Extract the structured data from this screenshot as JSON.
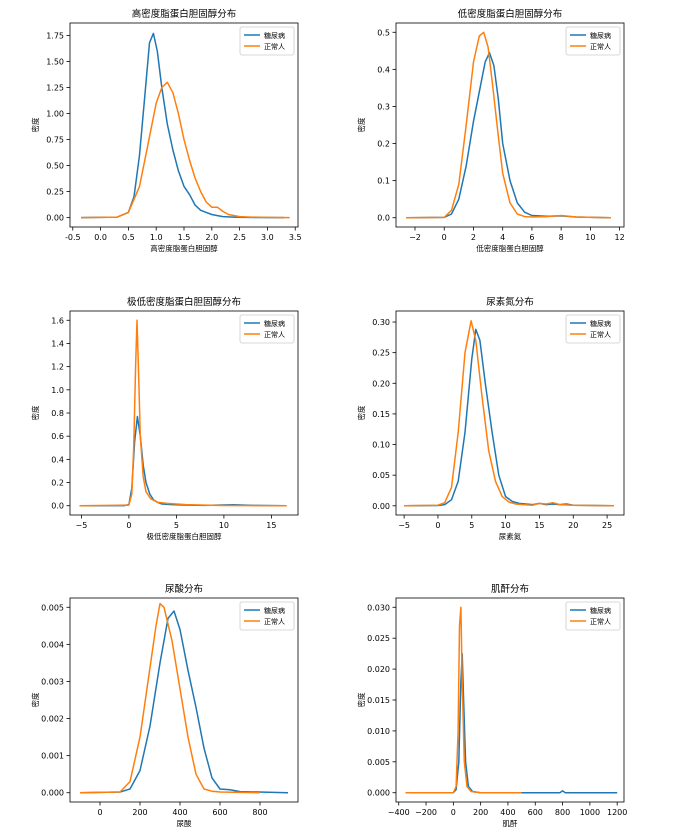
{
  "chart_data": [
    {
      "type": "line",
      "title": "高密度脂蛋白胆固醇分布",
      "xlabel": "高密度脂蛋白胆固醇",
      "ylabel": "密度",
      "xlim": [
        -0.55,
        3.55
      ],
      "ylim": [
        -0.09,
        1.87
      ],
      "xticks": [
        -0.5,
        0.0,
        0.5,
        1.0,
        1.5,
        2.0,
        2.5,
        3.0,
        3.5
      ],
      "xtick_labels": [
        "-0.5",
        "0.0",
        "0.5",
        "1.0",
        "1.5",
        "2.0",
        "2.5",
        "3.0",
        "3.5"
      ],
      "yticks": [
        0,
        0.25,
        0.5,
        0.75,
        1.0,
        1.25,
        1.5,
        1.75
      ],
      "ytick_labels": [
        "0.00",
        "0.25",
        "0.50",
        "0.75",
        "1.00",
        "1.25",
        "1.50",
        "1.75"
      ],
      "legend": "top-right",
      "series": [
        {
          "name": "糖尿病",
          "color": "#1f77b4",
          "x": [
            -0.35,
            0.3,
            0.5,
            0.6,
            0.7,
            0.8,
            0.88,
            0.95,
            1.02,
            1.1,
            1.2,
            1.3,
            1.4,
            1.5,
            1.6,
            1.7,
            1.8,
            1.9,
            2.0,
            2.1,
            2.2,
            2.4,
            2.6,
            3.3
          ],
          "y": [
            0,
            0.005,
            0.05,
            0.2,
            0.6,
            1.2,
            1.68,
            1.77,
            1.6,
            1.25,
            0.9,
            0.65,
            0.45,
            0.3,
            0.22,
            0.12,
            0.07,
            0.05,
            0.03,
            0.02,
            0.01,
            0.005,
            0.002,
            0
          ]
        },
        {
          "name": "正常人",
          "color": "#ff7f0e",
          "x": [
            -0.35,
            0.3,
            0.5,
            0.7,
            0.85,
            1.0,
            1.1,
            1.2,
            1.3,
            1.4,
            1.5,
            1.6,
            1.7,
            1.8,
            1.9,
            2.0,
            2.1,
            2.2,
            2.3,
            2.5,
            2.7,
            3.0,
            3.4
          ],
          "y": [
            0,
            0.005,
            0.05,
            0.3,
            0.7,
            1.1,
            1.25,
            1.3,
            1.2,
            1.0,
            0.75,
            0.55,
            0.38,
            0.25,
            0.15,
            0.1,
            0.1,
            0.06,
            0.03,
            0.01,
            0.005,
            0.002,
            0
          ]
        }
      ]
    },
    {
      "type": "line",
      "title": "低密度脂蛋白胆固醇分布",
      "xlabel": "低密度脂蛋白胆固醇",
      "ylabel": "密度",
      "xlim": [
        -3.3,
        12.3
      ],
      "ylim": [
        -0.025,
        0.525
      ],
      "xticks": [
        -2,
        0,
        2,
        4,
        6,
        8,
        10,
        12
      ],
      "xtick_labels": [
        "−2",
        "0",
        "2",
        "4",
        "6",
        "8",
        "10",
        "12"
      ],
      "yticks": [
        0,
        0.1,
        0.2,
        0.3,
        0.4,
        0.5
      ],
      "ytick_labels": [
        "0.0",
        "0.1",
        "0.2",
        "0.3",
        "0.4",
        "0.5"
      ],
      "legend": "top-right",
      "series": [
        {
          "name": "糖尿病",
          "color": "#1f77b4",
          "x": [
            -2.6,
            0,
            0.5,
            1.0,
            1.5,
            2.0,
            2.5,
            2.8,
            3.1,
            3.4,
            3.7,
            4.0,
            4.5,
            5.0,
            5.5,
            6.0,
            7.0,
            8.0,
            9.0,
            11.4
          ],
          "y": [
            0,
            0.001,
            0.01,
            0.05,
            0.14,
            0.26,
            0.36,
            0.42,
            0.445,
            0.41,
            0.32,
            0.2,
            0.1,
            0.04,
            0.015,
            0.006,
            0.004,
            0.005,
            0.002,
            0
          ]
        },
        {
          "name": "正常人",
          "color": "#ff7f0e",
          "x": [
            -2.6,
            0,
            0.5,
            1.0,
            1.5,
            2.0,
            2.4,
            2.7,
            3.0,
            3.3,
            3.7,
            4.0,
            4.5,
            5.0,
            5.5,
            6.0,
            7.0,
            8.0,
            9.0,
            11.4
          ],
          "y": [
            0,
            0.001,
            0.02,
            0.09,
            0.25,
            0.42,
            0.49,
            0.5,
            0.46,
            0.36,
            0.22,
            0.12,
            0.04,
            0.01,
            0.003,
            0.002,
            0.003,
            0.006,
            0.002,
            0
          ]
        }
      ]
    },
    {
      "type": "line",
      "title": "极低密度脂蛋白胆固醇分布",
      "xlabel": "极低密度脂蛋白胆固醇",
      "ylabel": "密度",
      "xlim": [
        -6.2,
        17.8
      ],
      "ylim": [
        -0.08,
        1.68
      ],
      "xticks": [
        -5,
        0,
        5,
        10,
        15
      ],
      "xtick_labels": [
        "−5",
        "0",
        "5",
        "10",
        "15"
      ],
      "yticks": [
        0,
        0.2,
        0.4,
        0.6,
        0.8,
        1.0,
        1.2,
        1.4,
        1.6
      ],
      "ytick_labels": [
        "0.0",
        "0.2",
        "0.4",
        "0.6",
        "0.8",
        "1.0",
        "1.2",
        "1.4",
        "1.6"
      ],
      "legend": "top-right",
      "series": [
        {
          "name": "糖尿病",
          "color": "#1f77b4",
          "x": [
            -5.2,
            -0.5,
            0.0,
            0.3,
            0.6,
            0.9,
            1.2,
            1.5,
            1.8,
            2.2,
            2.6,
            3.0,
            3.5,
            4.5,
            6,
            8,
            11,
            13,
            16.6
          ],
          "y": [
            0,
            0.001,
            0.01,
            0.15,
            0.55,
            0.77,
            0.6,
            0.35,
            0.2,
            0.1,
            0.05,
            0.03,
            0.015,
            0.01,
            0.005,
            0.003,
            0.008,
            0.003,
            0
          ]
        },
        {
          "name": "正常人",
          "color": "#ff7f0e",
          "x": [
            -5.2,
            0.0,
            0.3,
            0.5,
            0.7,
            0.85,
            1.0,
            1.2,
            1.5,
            1.8,
            2.3,
            3.0,
            4.0,
            5,
            6,
            8,
            10,
            16.6
          ],
          "y": [
            0,
            0.005,
            0.1,
            0.5,
            1.2,
            1.6,
            1.2,
            0.6,
            0.25,
            0.12,
            0.06,
            0.03,
            0.02,
            0.015,
            0.01,
            0.005,
            0.002,
            0
          ]
        }
      ]
    },
    {
      "type": "line",
      "title": "尿素氮分布",
      "xlabel": "尿素氮",
      "ylabel": "密度",
      "xlim": [
        -6.2,
        27.5
      ],
      "ylim": [
        -0.015,
        0.318
      ],
      "xticks": [
        -5,
        0,
        5,
        10,
        15,
        20,
        25
      ],
      "xtick_labels": [
        "−5",
        "0",
        "5",
        "10",
        "15",
        "20",
        "25"
      ],
      "yticks": [
        0,
        0.05,
        0.1,
        0.15,
        0.2,
        0.25,
        0.3
      ],
      "ytick_labels": [
        "0.00",
        "0.05",
        "0.10",
        "0.15",
        "0.20",
        "0.25",
        "0.30"
      ],
      "legend": "top-right",
      "series": [
        {
          "name": "糖尿病",
          "color": "#1f77b4",
          "x": [
            -5,
            0,
            1,
            2,
            3,
            4,
            5,
            5.6,
            6.2,
            7,
            8,
            9,
            10,
            11,
            12,
            13,
            14,
            15,
            16,
            17,
            18,
            19,
            20,
            26
          ],
          "y": [
            0,
            0.0005,
            0.002,
            0.01,
            0.04,
            0.12,
            0.24,
            0.288,
            0.27,
            0.2,
            0.12,
            0.05,
            0.015,
            0.007,
            0.004,
            0.003,
            0.002,
            0.004,
            0.002,
            0.003,
            0.002,
            0.003,
            0.001,
            0
          ]
        },
        {
          "name": "正常人",
          "color": "#ff7f0e",
          "x": [
            -5,
            0,
            1,
            2,
            3,
            4,
            4.9,
            5.6,
            6.5,
            7.5,
            8.5,
            9.5,
            10.5,
            11.5,
            12.5,
            14,
            15,
            16,
            17,
            18,
            20,
            26
          ],
          "y": [
            0,
            0.001,
            0.005,
            0.03,
            0.12,
            0.25,
            0.302,
            0.27,
            0.18,
            0.09,
            0.04,
            0.015,
            0.006,
            0.003,
            0.002,
            0.001,
            0.004,
            0.003,
            0.005,
            0.002,
            0.001,
            0
          ]
        }
      ]
    },
    {
      "type": "line",
      "title": "尿酸分布",
      "xlabel": "尿酸",
      "ylabel": "密度",
      "xlim": [
        -150,
        990
      ],
      "ylim": [
        -0.00025,
        0.00525
      ],
      "xticks": [
        0,
        200,
        400,
        600,
        800
      ],
      "xtick_labels": [
        "0",
        "200",
        "400",
        "600",
        "800"
      ],
      "yticks": [
        0,
        0.001,
        0.002,
        0.003,
        0.004,
        0.005
      ],
      "ytick_labels": [
        "0.000",
        "0.001",
        "0.002",
        "0.003",
        "0.004",
        "0.005"
      ],
      "legend": "top-right",
      "series": [
        {
          "name": "糖尿病",
          "color": "#1f77b4",
          "x": [
            -100,
            100,
            150,
            200,
            250,
            300,
            340,
            370,
            400,
            440,
            480,
            520,
            560,
            600,
            650,
            700,
            940
          ],
          "y": [
            0,
            2e-05,
            0.0001,
            0.0006,
            0.0018,
            0.0035,
            0.0047,
            0.0049,
            0.0044,
            0.0033,
            0.0023,
            0.0012,
            0.0004,
            0.0001,
            8e-05,
            3e-05,
            0
          ]
        },
        {
          "name": "正常人",
          "color": "#ff7f0e",
          "x": [
            -100,
            100,
            150,
            200,
            240,
            280,
            300,
            320,
            360,
            400,
            440,
            480,
            520,
            560,
            600,
            700,
            800
          ],
          "y": [
            0,
            2e-05,
            0.0003,
            0.0015,
            0.003,
            0.0045,
            0.0051,
            0.005,
            0.0041,
            0.0028,
            0.0015,
            0.0005,
            0.0001,
            4e-05,
            2e-05,
            1e-05,
            0
          ]
        }
      ]
    },
    {
      "type": "line",
      "title": "肌酐分布",
      "xlabel": "肌酐",
      "ylabel": "密度",
      "xlim": [
        -420,
        1250
      ],
      "ylim": [
        -0.0015,
        0.0315
      ],
      "xticks": [
        -400,
        -200,
        0,
        200,
        400,
        600,
        800,
        1000,
        1200
      ],
      "xtick_labels": [
        "−400",
        "−200",
        "0",
        "200",
        "400",
        "600",
        "800",
        "1000",
        "1200"
      ],
      "yticks": [
        0,
        0.005,
        0.01,
        0.015,
        0.02,
        0.025,
        0.03
      ],
      "ytick_labels": [
        "0.000",
        "0.005",
        "0.010",
        "0.015",
        "0.020",
        "0.025",
        "0.030"
      ],
      "legend": "top-right",
      "series": [
        {
          "name": "糖尿病",
          "color": "#1f77b4",
          "x": [
            -350,
            0,
            20,
            40,
            55,
            65,
            75,
            90,
            110,
            140,
            200,
            400,
            780,
            800,
            820,
            1200
          ],
          "y": [
            0,
            0,
            0.0005,
            0.005,
            0.018,
            0.0225,
            0.015,
            0.005,
            0.001,
            0.0002,
            0,
            0,
            0,
            0.0003,
            0,
            0
          ]
        },
        {
          "name": "正常人",
          "color": "#ff7f0e",
          "x": [
            -350,
            0,
            20,
            35,
            45,
            55,
            65,
            80,
            100,
            130,
            200,
            500
          ],
          "y": [
            0,
            0,
            0.001,
            0.01,
            0.027,
            0.03,
            0.018,
            0.005,
            0.001,
            0.0002,
            0,
            0
          ]
        }
      ]
    }
  ]
}
